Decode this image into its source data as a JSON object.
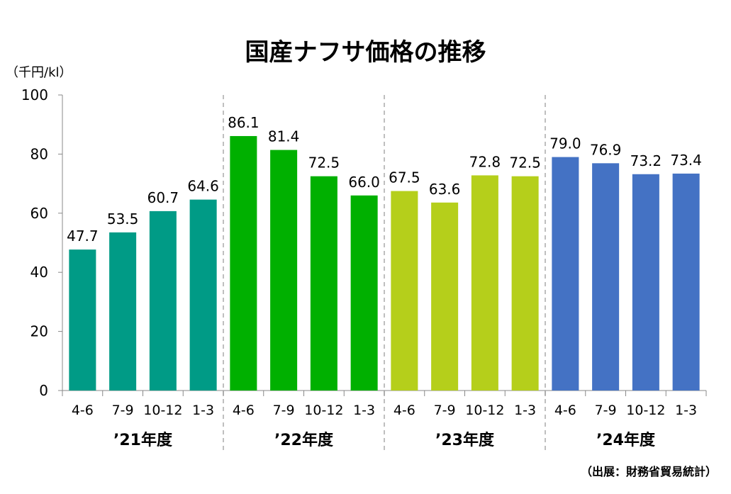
{
  "chart_data": {
    "type": "bar",
    "title": "国産ナフサ価格の推移",
    "ylabel": "（千円/kl）",
    "source": "（出展：財務省貿易統計）",
    "ylim": [
      0,
      100
    ],
    "yticks": [
      0,
      20,
      40,
      60,
      80,
      100
    ],
    "grid": false,
    "groups": [
      {
        "label": "’21年度",
        "color": "#009B86",
        "categories": [
          "4-6",
          "7-9",
          "10-12",
          "1-3"
        ],
        "values": [
          47.7,
          53.5,
          60.7,
          64.6
        ]
      },
      {
        "label": "’22年度",
        "color": "#00B000",
        "categories": [
          "4-6",
          "7-9",
          "10-12",
          "1-3"
        ],
        "values": [
          86.1,
          81.4,
          72.5,
          66.0
        ]
      },
      {
        "label": "’23年度",
        "color": "#B5CF1B",
        "categories": [
          "4-6",
          "7-9",
          "10-12",
          "1-3"
        ],
        "values": [
          67.5,
          63.6,
          72.8,
          72.5
        ]
      },
      {
        "label": "’24年度",
        "color": "#4472C4",
        "categories": [
          "4-6",
          "7-9",
          "10-12",
          "1-3"
        ],
        "values": [
          79.0,
          76.9,
          73.2,
          73.4
        ]
      }
    ]
  }
}
